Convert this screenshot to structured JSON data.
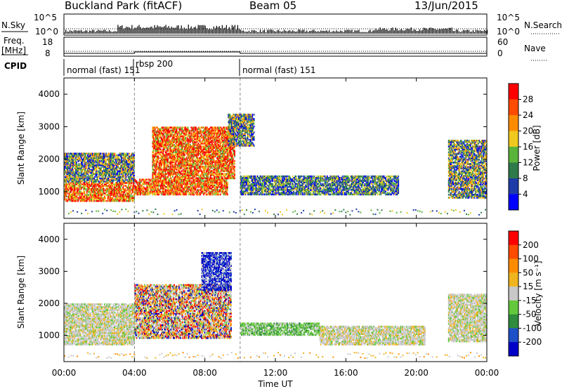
{
  "header": {
    "title": "Buckland Park (fitACF)",
    "beam": "Beam 05",
    "date": "13/Jun/2015"
  },
  "strips": {
    "nsky_label": "N.Sky",
    "nsky_ticks": [
      "10^5",
      "10^0"
    ],
    "nsearch_label": "N.Search",
    "nsearch_ticks": [
      "10^5",
      "10^0"
    ],
    "freq_label_1": "Freq.",
    "freq_label_2": "[MHz]",
    "freq_ticks": [
      "18",
      "8"
    ],
    "nave_label": "Nave",
    "nave_ticks": [
      "60",
      "0"
    ],
    "cpid_label": "CPID",
    "cpid_segments": [
      "normal (fast) 151",
      "rbsp 200",
      "normal (fast) 151"
    ]
  },
  "chart_data": [
    {
      "type": "heatmap",
      "name": "power-panel",
      "ylabel": "Slant Range [km]",
      "yticks": [
        1000,
        2000,
        3000,
        4000
      ],
      "ylim": [
        180,
        4500
      ],
      "xlim_hours": [
        0,
        24
      ],
      "colorbar": {
        "label": "Power [dB]",
        "ticks": [
          "4",
          "8",
          "12",
          "16",
          "20",
          "24",
          "28"
        ],
        "colors": [
          "#0000ff",
          "#1e3ca8",
          "#2e7a4a",
          "#5ab43c",
          "#f0c81e",
          "#ff8c00",
          "#ff4b00",
          "#ff0000"
        ]
      },
      "regions": [
        {
          "t0": 0.0,
          "t1": 4.0,
          "r0": 700,
          "r1": 1300,
          "level": "high"
        },
        {
          "t0": 0.0,
          "t1": 4.0,
          "r0": 1300,
          "r1": 2200,
          "level": "mid"
        },
        {
          "t0": 4.0,
          "t1": 9.3,
          "r0": 900,
          "r1": 1400,
          "level": "high"
        },
        {
          "t0": 5.0,
          "t1": 9.7,
          "r0": 1400,
          "r1": 3000,
          "level": "high"
        },
        {
          "t0": 9.3,
          "t1": 10.8,
          "r0": 2400,
          "r1": 3400,
          "level": "mid"
        },
        {
          "t0": 10.0,
          "t1": 19.0,
          "r0": 900,
          "r1": 1500,
          "level": "low"
        },
        {
          "t0": 21.8,
          "t1": 24.0,
          "r0": 800,
          "r1": 2600,
          "level": "mid"
        }
      ]
    },
    {
      "type": "heatmap",
      "name": "velocity-panel",
      "xlabel": "Time UT",
      "ylabel": "Slant Range [km]",
      "yticks": [
        1000,
        2000,
        3000,
        4000
      ],
      "ylim": [
        180,
        4500
      ],
      "xticks": [
        "00:00",
        "04:00",
        "08:00",
        "12:00",
        "16:00",
        "20:00",
        "00:00"
      ],
      "colorbar": {
        "label": "Velocity [m s⁻¹]",
        "ticks": [
          "200",
          "100",
          "50",
          "15",
          "-15",
          "-50",
          "-100",
          "-200"
        ],
        "colors": [
          "#0000c8",
          "#1e50c8",
          "#2e8c3c",
          "#64c83c",
          "#c8c8c8",
          "#f0b41e",
          "#ff8c00",
          "#ff4b00",
          "#ff0000"
        ]
      },
      "regions": [
        {
          "t0": 0.0,
          "t1": 4.0,
          "r0": 700,
          "r1": 2000,
          "level": "ground"
        },
        {
          "t0": 4.0,
          "t1": 9.5,
          "r0": 900,
          "r1": 2600,
          "level": "mixed"
        },
        {
          "t0": 7.8,
          "t1": 9.5,
          "r0": 2400,
          "r1": 3600,
          "level": "toward"
        },
        {
          "t0": 10.0,
          "t1": 14.5,
          "r0": 1000,
          "r1": 1400,
          "level": "weak-toward"
        },
        {
          "t0": 14.5,
          "t1": 20.5,
          "r0": 700,
          "r1": 1300,
          "level": "ground"
        },
        {
          "t0": 21.8,
          "t1": 24.0,
          "r0": 800,
          "r1": 2300,
          "level": "ground"
        }
      ]
    }
  ]
}
